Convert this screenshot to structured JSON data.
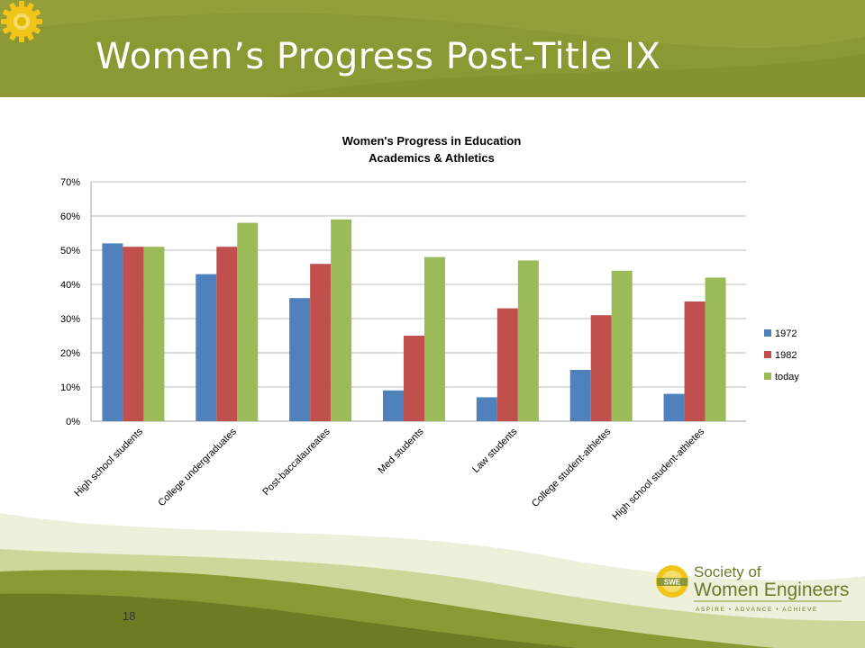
{
  "slide": {
    "title": "Women’s Progress Post-Title IX",
    "page_number": "18"
  },
  "logo": {
    "line1": "Society of",
    "line2": "Women Engineers",
    "tagline": "ASPIRE • ADVANCE • ACHIEVE",
    "badge": "SWE"
  },
  "colors": {
    "header": "#8c9833",
    "series_1972": "#4f81bd",
    "series_1982": "#c0504d",
    "series_today": "#9bbb59",
    "logo_text": "#6a7a2a"
  },
  "icons": [
    "gear-icon"
  ],
  "chart_data": {
    "type": "bar",
    "title": "Women's Progress in Education",
    "subtitle": "Academics & Athletics",
    "categories": [
      "High school students",
      "College undergraduates",
      "Post-baccalaureates",
      "Med students",
      "Law students",
      "College student-athletes",
      "High school student-athletes"
    ],
    "series": [
      {
        "name": "1972",
        "color": "#4f81bd",
        "values": [
          0.52,
          0.43,
          0.36,
          0.09,
          0.07,
          0.15,
          0.08
        ]
      },
      {
        "name": "1982",
        "color": "#c0504d",
        "values": [
          0.51,
          0.51,
          0.46,
          0.25,
          0.33,
          0.31,
          0.35
        ]
      },
      {
        "name": "today",
        "color": "#9bbb59",
        "values": [
          0.51,
          0.58,
          0.59,
          0.48,
          0.47,
          0.44,
          0.42
        ]
      }
    ],
    "yticks": [
      "0%",
      "10%",
      "20%",
      "30%",
      "40%",
      "50%",
      "60%",
      "70%"
    ],
    "ylim": [
      0,
      0.7
    ],
    "grid": true,
    "legend_position": "right"
  }
}
